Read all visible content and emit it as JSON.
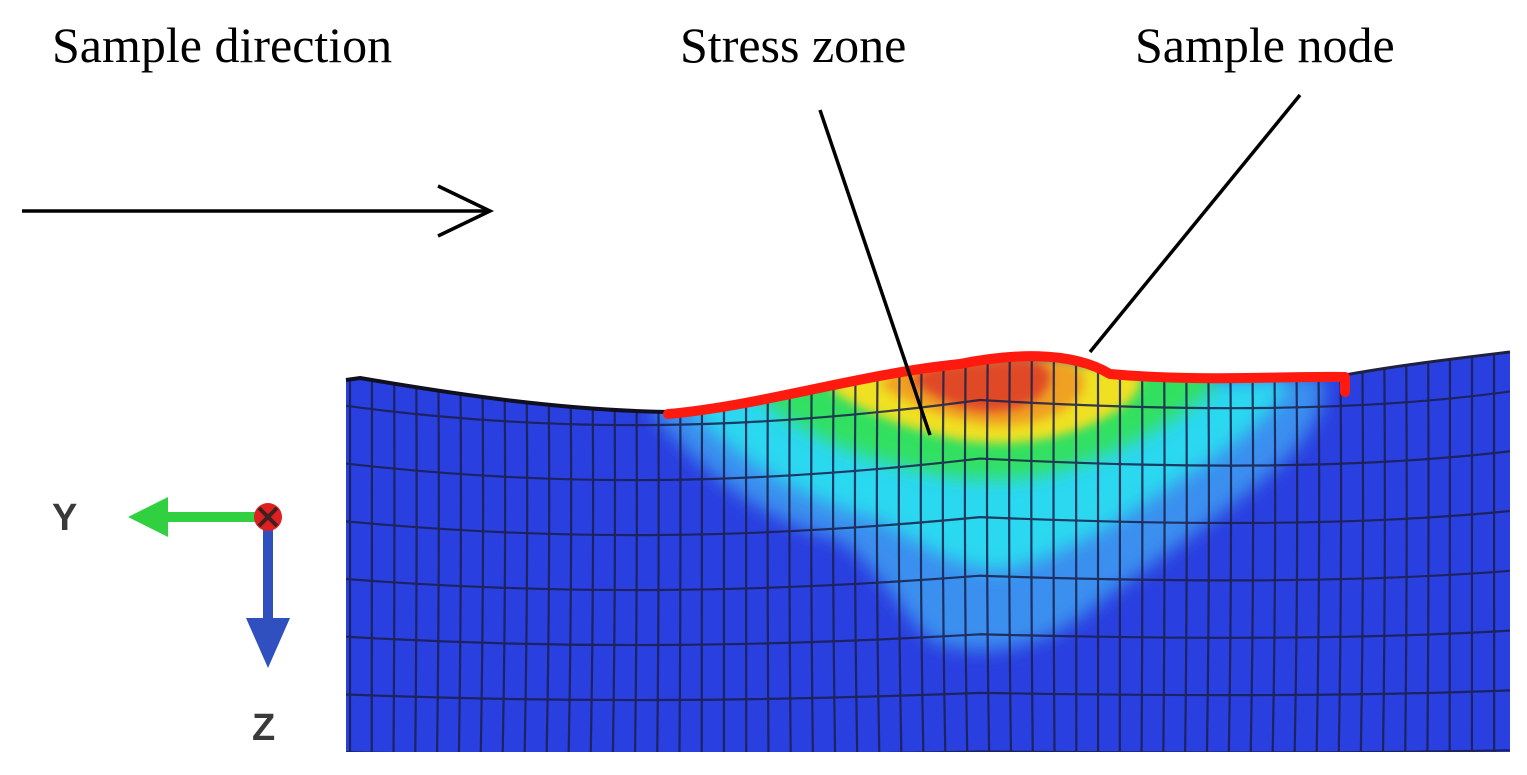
{
  "labels": {
    "sample_direction": "Sample direction",
    "stress_zone": "Stress zone",
    "sample_node": "Sample node"
  },
  "axes": {
    "y_label": "Y",
    "z_label": "Z"
  },
  "colors": {
    "mesh_blue": "#2a3fe0",
    "mesh_line": "#1a1f4a",
    "stress_light_blue": "#3aa0f0",
    "stress_cyan": "#2ad8f0",
    "stress_green": "#30e060",
    "stress_yellow": "#f0e020",
    "stress_orange": "#f0a020",
    "stress_red": "#e03a20",
    "node_line_red": "#ff1a10",
    "y_axis_green": "#30d040",
    "z_axis_blue": "#3050c0",
    "origin_red": "#e02020",
    "text_black": "#000000"
  },
  "icons": {
    "direction_arrow": "arrow-right-icon",
    "axis_triad": "coordinate-axes-icon"
  }
}
